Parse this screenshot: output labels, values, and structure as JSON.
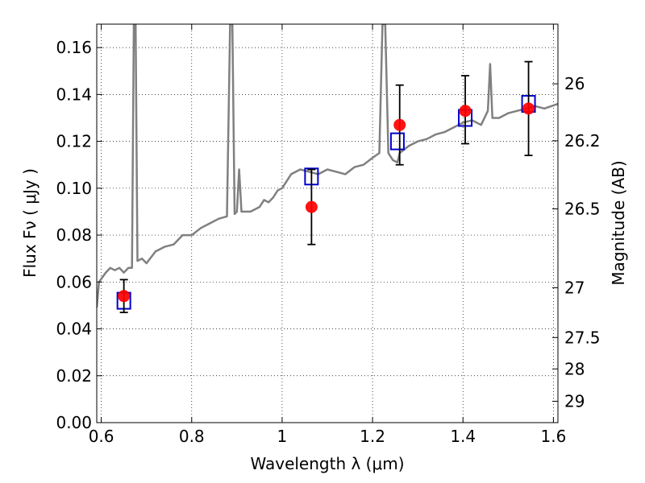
{
  "chart_data": {
    "type": "scatter",
    "title": "",
    "xlabel": "Wavelength  λ (μm)",
    "ylabel": "Flux  Fν  ( μJy )",
    "ylabel_right": "Magnitude (AB)",
    "xlim": [
      0.59,
      1.61
    ],
    "ylim": [
      0.0,
      0.17
    ],
    "grid": true,
    "x_ticks": [
      {
        "v": 0.6,
        "label": "0.6"
      },
      {
        "v": 0.8,
        "label": "0.8"
      },
      {
        "v": 1.0,
        "label": "1"
      },
      {
        "v": 1.2,
        "label": "1.2"
      },
      {
        "v": 1.4,
        "label": "1.4"
      },
      {
        "v": 1.6,
        "label": "1.6"
      }
    ],
    "y_ticks": [
      {
        "v": 0.0,
        "label": "0.00"
      },
      {
        "v": 0.02,
        "label": "0.02"
      },
      {
        "v": 0.04,
        "label": "0.04"
      },
      {
        "v": 0.06,
        "label": "0.06"
      },
      {
        "v": 0.08,
        "label": "0.08"
      },
      {
        "v": 0.1,
        "label": "0.10"
      },
      {
        "v": 0.12,
        "label": "0.12"
      },
      {
        "v": 0.14,
        "label": "0.14"
      },
      {
        "v": 0.16,
        "label": "0.16"
      }
    ],
    "right_ticks": [
      {
        "mag": 26.0,
        "label": "26"
      },
      {
        "mag": 26.2,
        "label": "26.2"
      },
      {
        "mag": 26.5,
        "label": "26.5"
      },
      {
        "mag": 27.0,
        "label": "27"
      },
      {
        "mag": 27.5,
        "label": "27.5"
      },
      {
        "mag": 28.0,
        "label": "28"
      },
      {
        "mag": 29.0,
        "label": "29"
      }
    ],
    "series": [
      {
        "kind": "line",
        "color": "#808080",
        "points": [
          [
            0.59,
            0.049
          ],
          [
            0.595,
            0.06
          ],
          [
            0.61,
            0.064
          ],
          [
            0.62,
            0.066
          ],
          [
            0.63,
            0.065
          ],
          [
            0.64,
            0.066
          ],
          [
            0.65,
            0.064
          ],
          [
            0.66,
            0.066
          ],
          [
            0.668,
            0.066
          ],
          [
            0.672,
            0.17
          ],
          [
            0.676,
            0.17
          ],
          [
            0.68,
            0.069
          ],
          [
            0.69,
            0.07
          ],
          [
            0.7,
            0.068
          ],
          [
            0.72,
            0.073
          ],
          [
            0.74,
            0.075
          ],
          [
            0.76,
            0.076
          ],
          [
            0.78,
            0.08
          ],
          [
            0.8,
            0.08
          ],
          [
            0.82,
            0.083
          ],
          [
            0.84,
            0.085
          ],
          [
            0.86,
            0.087
          ],
          [
            0.878,
            0.088
          ],
          [
            0.885,
            0.17
          ],
          [
            0.89,
            0.17
          ],
          [
            0.895,
            0.089
          ],
          [
            0.9,
            0.09
          ],
          [
            0.905,
            0.108
          ],
          [
            0.91,
            0.09
          ],
          [
            0.93,
            0.09
          ],
          [
            0.95,
            0.092
          ],
          [
            0.96,
            0.095
          ],
          [
            0.97,
            0.094
          ],
          [
            0.98,
            0.096
          ],
          [
            0.99,
            0.099
          ],
          [
            1.0,
            0.1
          ],
          [
            1.02,
            0.106
          ],
          [
            1.04,
            0.108
          ],
          [
            1.06,
            0.107
          ],
          [
            1.08,
            0.106
          ],
          [
            1.1,
            0.108
          ],
          [
            1.12,
            0.107
          ],
          [
            1.14,
            0.106
          ],
          [
            1.16,
            0.109
          ],
          [
            1.18,
            0.11
          ],
          [
            1.2,
            0.113
          ],
          [
            1.215,
            0.115
          ],
          [
            1.222,
            0.17
          ],
          [
            1.228,
            0.17
          ],
          [
            1.235,
            0.115
          ],
          [
            1.245,
            0.112
          ],
          [
            1.255,
            0.111
          ],
          [
            1.26,
            0.115
          ],
          [
            1.28,
            0.118
          ],
          [
            1.3,
            0.12
          ],
          [
            1.32,
            0.121
          ],
          [
            1.34,
            0.123
          ],
          [
            1.36,
            0.124
          ],
          [
            1.38,
            0.126
          ],
          [
            1.4,
            0.128
          ],
          [
            1.42,
            0.129
          ],
          [
            1.44,
            0.127
          ],
          [
            1.455,
            0.133
          ],
          [
            1.46,
            0.153
          ],
          [
            1.465,
            0.13
          ],
          [
            1.48,
            0.13
          ],
          [
            1.5,
            0.132
          ],
          [
            1.52,
            0.133
          ],
          [
            1.54,
            0.134
          ],
          [
            1.56,
            0.135
          ],
          [
            1.58,
            0.134
          ],
          [
            1.61,
            0.136
          ]
        ]
      },
      {
        "kind": "markers",
        "marker": "square-open",
        "color": "#0000cc",
        "points": [
          [
            0.65,
            0.052
          ],
          [
            1.065,
            0.105
          ],
          [
            1.255,
            0.12
          ],
          [
            1.405,
            0.13
          ],
          [
            1.545,
            0.136
          ]
        ]
      },
      {
        "kind": "markers-errorbar",
        "marker": "circle",
        "color": "#ff0000",
        "points": [
          {
            "x": 0.65,
            "y": 0.054,
            "lo": 0.047,
            "hi": 0.061
          },
          {
            "x": 1.065,
            "y": 0.092,
            "lo": 0.076,
            "hi": 0.108
          },
          {
            "x": 1.26,
            "y": 0.127,
            "lo": 0.11,
            "hi": 0.144
          },
          {
            "x": 1.405,
            "y": 0.133,
            "lo": 0.119,
            "hi": 0.148
          },
          {
            "x": 1.545,
            "y": 0.134,
            "lo": 0.114,
            "hi": 0.154
          }
        ]
      }
    ]
  }
}
